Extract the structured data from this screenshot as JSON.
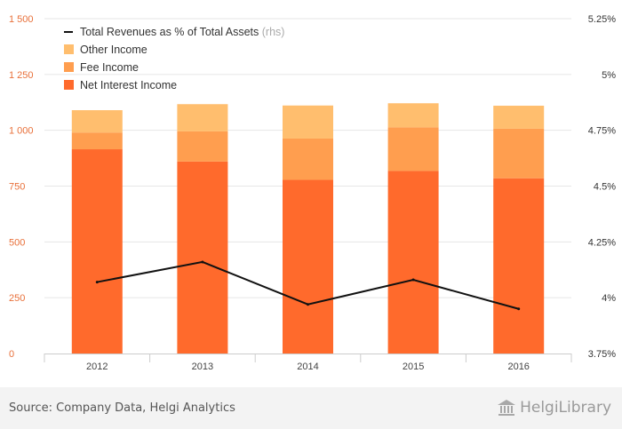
{
  "chart_data": {
    "type": "bar",
    "stacked": true,
    "categories": [
      "2012",
      "2013",
      "2014",
      "2015",
      "2016"
    ],
    "series": [
      {
        "name": "Net Interest Income",
        "values": [
          915,
          860,
          778,
          818,
          785
        ],
        "color": "#ff6a2c"
      },
      {
        "name": "Fee Income",
        "values": [
          75,
          135,
          185,
          195,
          222
        ],
        "color": "#ff9e4f"
      },
      {
        "name": "Other Income",
        "values": [
          100,
          122,
          148,
          108,
          103
        ],
        "color": "#ffbe6e"
      }
    ],
    "line_series": {
      "name": "Total Revenues as % of Total Assets",
      "note": "(rhs)",
      "values": [
        4.07,
        4.16,
        3.97,
        4.08,
        3.95
      ],
      "color": "#111111",
      "axis": "right"
    },
    "ylim": [
      0,
      1500
    ],
    "yticks": [
      0,
      250,
      500,
      750,
      1000,
      1250,
      1500
    ],
    "ytick_labels": [
      "0",
      "250",
      "500",
      "750",
      "1 000",
      "1 250",
      "1 500"
    ],
    "y2lim": [
      3.75,
      5.25
    ],
    "y2ticks": [
      3.75,
      4.0,
      4.25,
      4.5,
      4.75,
      5.0,
      5.25
    ],
    "y2tick_labels": [
      "3.75%",
      "4%",
      "4.25%",
      "4.5%",
      "4.75%",
      "5%",
      "5.25%"
    ],
    "grid": true,
    "legend_placement": "top-left"
  },
  "footer": {
    "source": "Source: Company Data, Helgi Analytics",
    "brand": "HelgiLibrary",
    "brand_icon": "library-building-icon"
  }
}
